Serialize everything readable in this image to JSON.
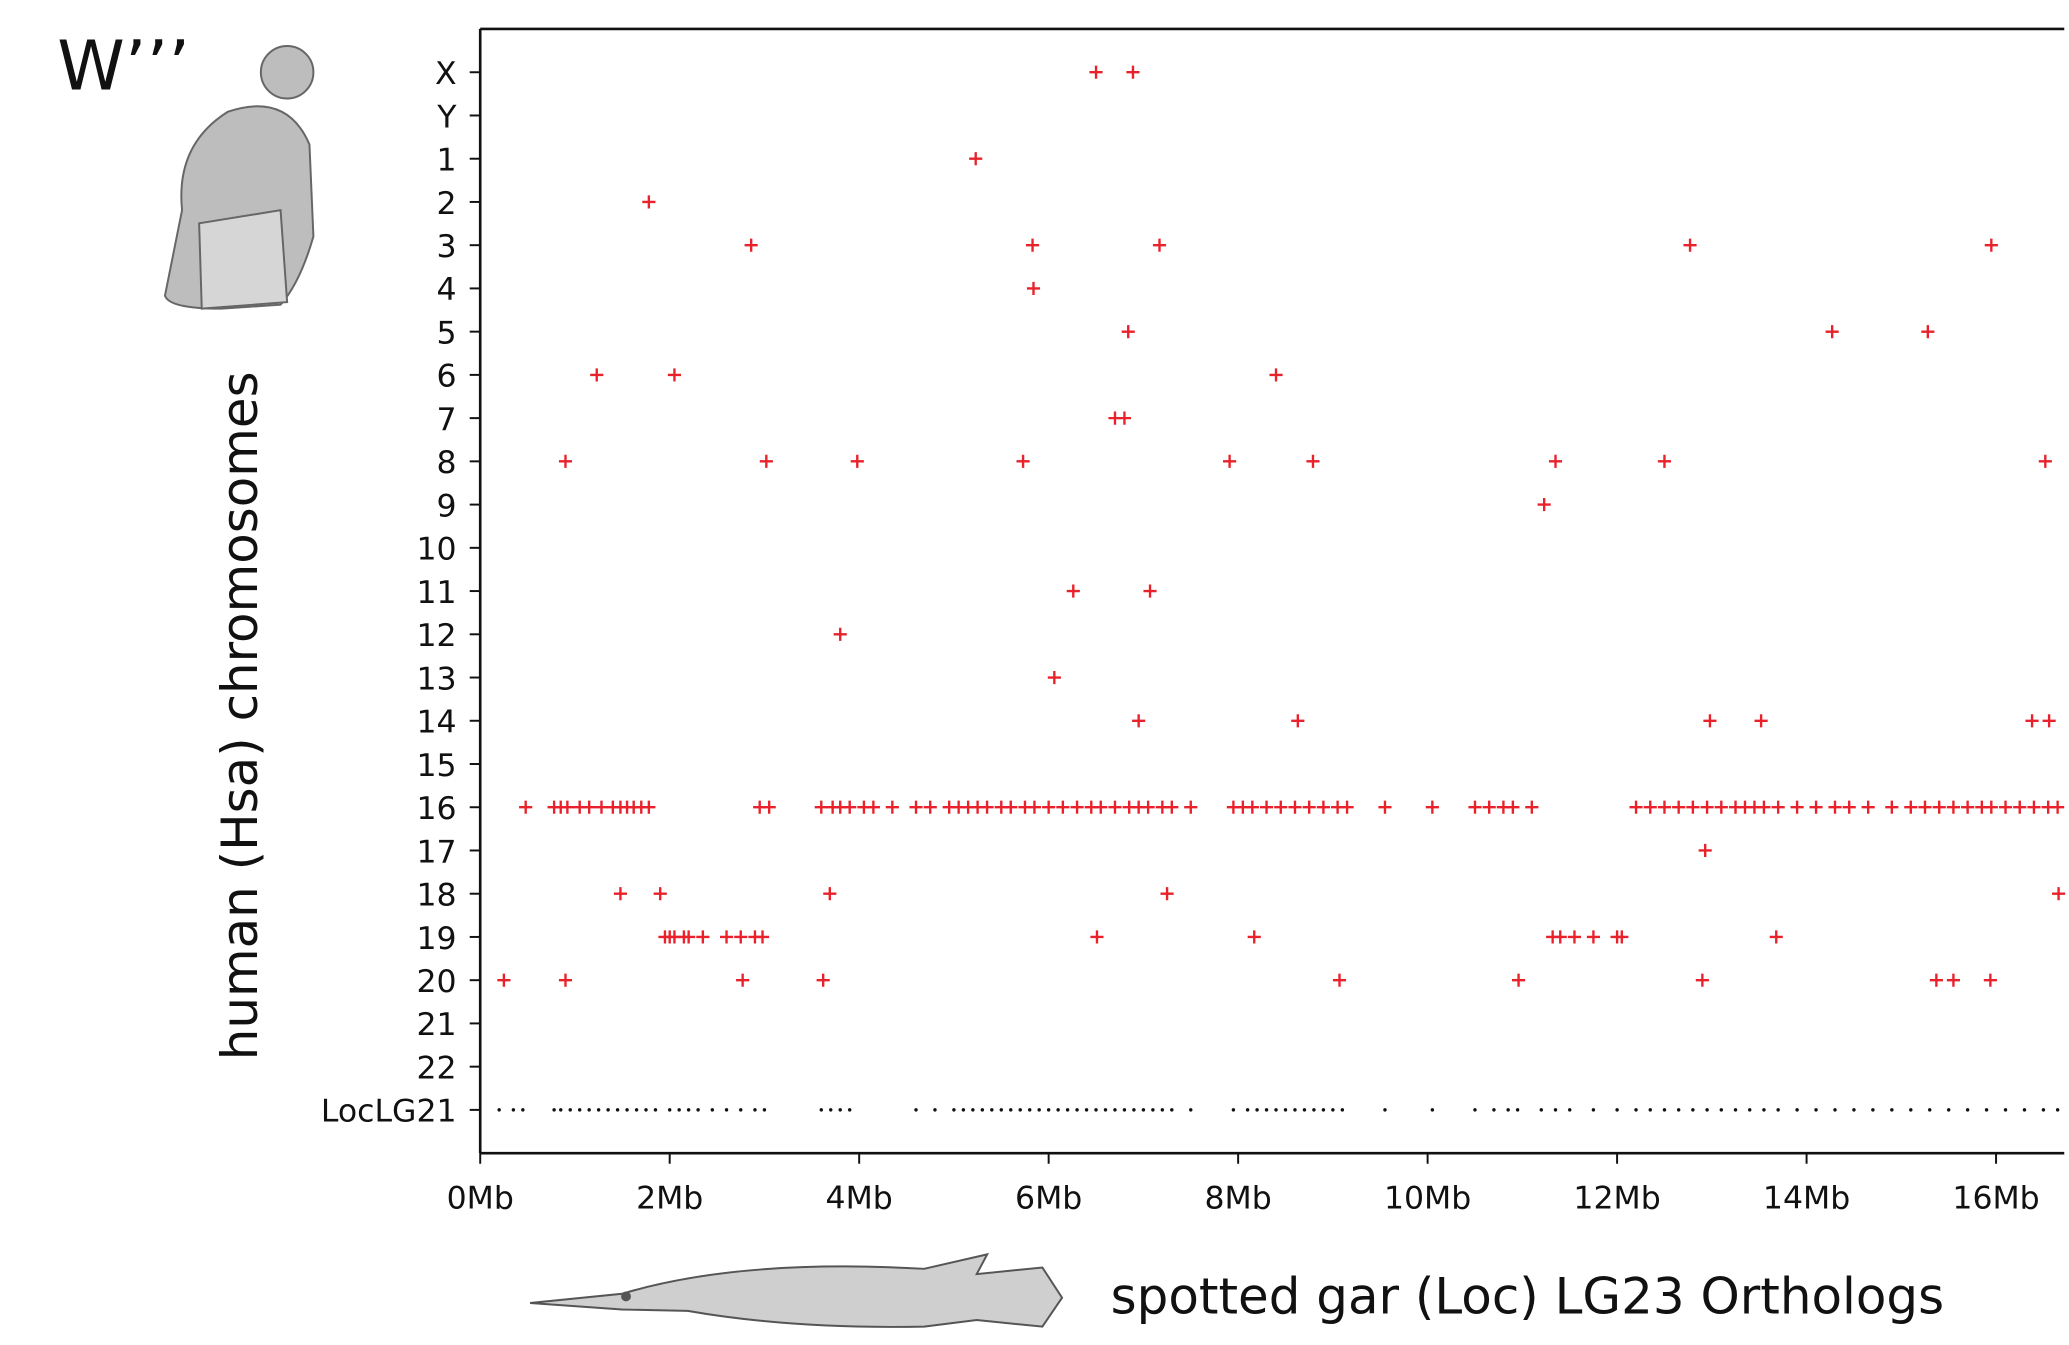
{
  "chart_data": {
    "type": "scatter",
    "panel_label": "W’’’",
    "y_axis_label": "human (Hsa) chromosomes",
    "x_axis_label": "spotted gar (Loc) LG23 Orthologs",
    "xlim": [
      0,
      16.72
    ],
    "xticks": [
      {
        "value": 0,
        "label": "0Mb"
      },
      {
        "value": 2,
        "label": "2Mb"
      },
      {
        "value": 4,
        "label": "4Mb"
      },
      {
        "value": 6,
        "label": "6Mb"
      },
      {
        "value": 8,
        "label": "8Mb"
      },
      {
        "value": 10,
        "label": "10Mb"
      },
      {
        "value": 12,
        "label": "12Mb"
      },
      {
        "value": 14,
        "label": "14Mb"
      },
      {
        "value": 16,
        "label": "16Mb"
      }
    ],
    "rows": [
      {
        "category": "X",
        "color": "#e8212a",
        "x": [
          6.5,
          6.89
        ]
      },
      {
        "category": "Y",
        "color": "#e8212a",
        "x": []
      },
      {
        "category": "1",
        "color": "#e8212a",
        "x": [
          5.23
        ]
      },
      {
        "category": "2",
        "color": "#e8212a",
        "x": [
          1.78
        ]
      },
      {
        "category": "3",
        "color": "#e8212a",
        "x": [
          2.86,
          5.83,
          7.17,
          12.77,
          15.95
        ]
      },
      {
        "category": "4",
        "color": "#e8212a",
        "x": [
          5.84
        ]
      },
      {
        "category": "5",
        "color": "#e8212a",
        "x": [
          6.84,
          14.27,
          15.28
        ]
      },
      {
        "category": "6",
        "color": "#e8212a",
        "x": [
          1.23,
          2.05,
          8.4
        ]
      },
      {
        "category": "7",
        "color": "#e8212a",
        "x": [
          6.7,
          6.8
        ]
      },
      {
        "category": "8",
        "color": "#e8212a",
        "x": [
          0.9,
          3.02,
          3.98,
          5.73,
          7.91,
          8.79,
          11.35,
          12.5,
          16.52
        ]
      },
      {
        "category": "9",
        "color": "#e8212a",
        "x": [
          11.23
        ]
      },
      {
        "category": "10",
        "color": "#e8212a",
        "x": []
      },
      {
        "category": "11",
        "color": "#e8212a",
        "x": [
          6.26,
          7.07
        ]
      },
      {
        "category": "12",
        "color": "#e8212a",
        "x": [
          3.8
        ]
      },
      {
        "category": "13",
        "color": "#e8212a",
        "x": [
          6.06
        ]
      },
      {
        "category": "14",
        "color": "#e8212a",
        "x": [
          6.95,
          8.63,
          12.98,
          13.52,
          16.38,
          16.56
        ]
      },
      {
        "category": "15",
        "color": "#e8212a",
        "x": []
      },
      {
        "category": "16",
        "color": "#e8212a",
        "x": [
          0.48,
          0.78,
          0.85,
          0.92,
          1.05,
          1.15,
          1.28,
          1.4,
          1.48,
          1.55,
          1.62,
          1.7,
          1.78,
          2.95,
          3.05,
          3.6,
          3.72,
          3.8,
          3.9,
          4.05,
          4.15,
          4.35,
          4.6,
          4.75,
          4.95,
          5.05,
          5.15,
          5.25,
          5.35,
          5.5,
          5.6,
          5.75,
          5.85,
          6.0,
          6.15,
          6.3,
          6.45,
          6.55,
          6.7,
          6.85,
          6.95,
          7.05,
          7.2,
          7.3,
          7.5,
          7.95,
          8.05,
          8.15,
          8.3,
          8.45,
          8.6,
          8.75,
          8.9,
          9.05,
          9.15,
          9.55,
          10.05,
          10.5,
          10.65,
          10.8,
          10.9,
          11.1,
          12.2,
          12.35,
          12.5,
          12.65,
          12.8,
          12.95,
          13.1,
          13.25,
          13.35,
          13.45,
          13.55,
          13.7,
          13.9,
          14.1,
          14.3,
          14.45,
          14.65,
          14.9,
          15.1,
          15.25,
          15.4,
          15.55,
          15.7,
          15.85,
          15.95,
          16.1,
          16.25,
          16.4,
          16.55,
          16.65
        ]
      },
      {
        "category": "17",
        "color": "#e8212a",
        "x": [
          12.93
        ]
      },
      {
        "category": "18",
        "color": "#e8212a",
        "x": [
          1.48,
          1.9,
          3.69,
          7.25,
          16.66
        ]
      },
      {
        "category": "19",
        "color": "#e8212a",
        "x": [
          1.95,
          2.0,
          2.05,
          2.15,
          2.2,
          2.35,
          2.6,
          2.75,
          2.9,
          2.98,
          6.51,
          8.17,
          11.32,
          11.4,
          11.55,
          11.75,
          12.0,
          12.05,
          13.68
        ]
      },
      {
        "category": "20",
        "color": "#e8212a",
        "x": [
          0.25,
          0.9,
          2.77,
          3.62,
          9.07,
          10.96,
          12.9,
          15.37,
          15.55,
          15.94
        ]
      },
      {
        "category": "21",
        "color": "#e8212a",
        "x": []
      },
      {
        "category": "22",
        "color": "#e8212a",
        "x": []
      },
      {
        "category": "LocLG21",
        "color": "#111111",
        "x": [
          0.2,
          0.35,
          0.45,
          0.78,
          0.85,
          0.95,
          1.05,
          1.15,
          1.25,
          1.35,
          1.45,
          1.55,
          1.65,
          1.75,
          1.85,
          2.0,
          2.1,
          2.2,
          2.3,
          2.45,
          2.6,
          2.75,
          2.9,
          3.0,
          3.6,
          3.7,
          3.8,
          3.9,
          4.6,
          4.8,
          5.0,
          5.1,
          5.2,
          5.3,
          5.4,
          5.5,
          5.6,
          5.7,
          5.8,
          5.9,
          6.0,
          6.1,
          6.2,
          6.3,
          6.4,
          6.5,
          6.6,
          6.7,
          6.8,
          6.9,
          7.0,
          7.1,
          7.2,
          7.3,
          7.5,
          7.95,
          8.1,
          8.2,
          8.3,
          8.4,
          8.5,
          8.6,
          8.7,
          8.8,
          8.9,
          9.0,
          9.1,
          9.55,
          10.05,
          10.5,
          10.7,
          10.85,
          10.95,
          11.2,
          11.35,
          11.5,
          11.75,
          12.0,
          12.2,
          12.35,
          12.5,
          12.65,
          12.8,
          12.95,
          13.1,
          13.25,
          13.4,
          13.55,
          13.7,
          13.9,
          14.1,
          14.3,
          14.5,
          14.7,
          14.9,
          15.1,
          15.3,
          15.5,
          15.7,
          15.9,
          16.1,
          16.3,
          16.5,
          16.65
        ]
      }
    ]
  }
}
